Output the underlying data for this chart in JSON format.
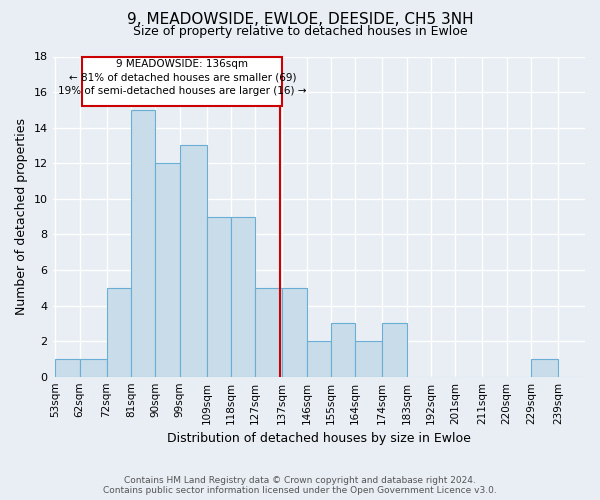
{
  "title": "9, MEADOWSIDE, EWLOE, DEESIDE, CH5 3NH",
  "subtitle": "Size of property relative to detached houses in Ewloe",
  "xlabel": "Distribution of detached houses by size in Ewloe",
  "ylabel": "Number of detached properties",
  "bin_labels": [
    "53sqm",
    "62sqm",
    "72sqm",
    "81sqm",
    "90sqm",
    "99sqm",
    "109sqm",
    "118sqm",
    "127sqm",
    "137sqm",
    "146sqm",
    "155sqm",
    "164sqm",
    "174sqm",
    "183sqm",
    "192sqm",
    "201sqm",
    "211sqm",
    "220sqm",
    "229sqm",
    "239sqm"
  ],
  "bin_edges": [
    53,
    62,
    72,
    81,
    90,
    99,
    109,
    118,
    127,
    137,
    146,
    155,
    164,
    174,
    183,
    192,
    201,
    211,
    220,
    229,
    239
  ],
  "bar_heights": [
    1,
    1,
    5,
    15,
    12,
    13,
    9,
    9,
    5,
    5,
    2,
    3,
    2,
    3,
    0,
    0,
    0,
    0,
    0,
    1,
    0
  ],
  "bar_color": "#c8dcea",
  "bar_edge_color": "#6aaed6",
  "property_value": 136,
  "vline_color": "#cc0000",
  "annotation_title": "9 MEADOWSIDE: 136sqm",
  "annotation_line1": "← 81% of detached houses are smaller (69)",
  "annotation_line2": "19% of semi-detached houses are larger (16) →",
  "annotation_box_color": "#ffffff",
  "annotation_box_edge": "#cc0000",
  "ylim": [
    0,
    18
  ],
  "yticks": [
    0,
    2,
    4,
    6,
    8,
    10,
    12,
    14,
    16,
    18
  ],
  "background_color": "#e8eef4",
  "footer_line1": "Contains HM Land Registry data © Crown copyright and database right 2024.",
  "footer_line2": "Contains public sector information licensed under the Open Government Licence v3.0."
}
